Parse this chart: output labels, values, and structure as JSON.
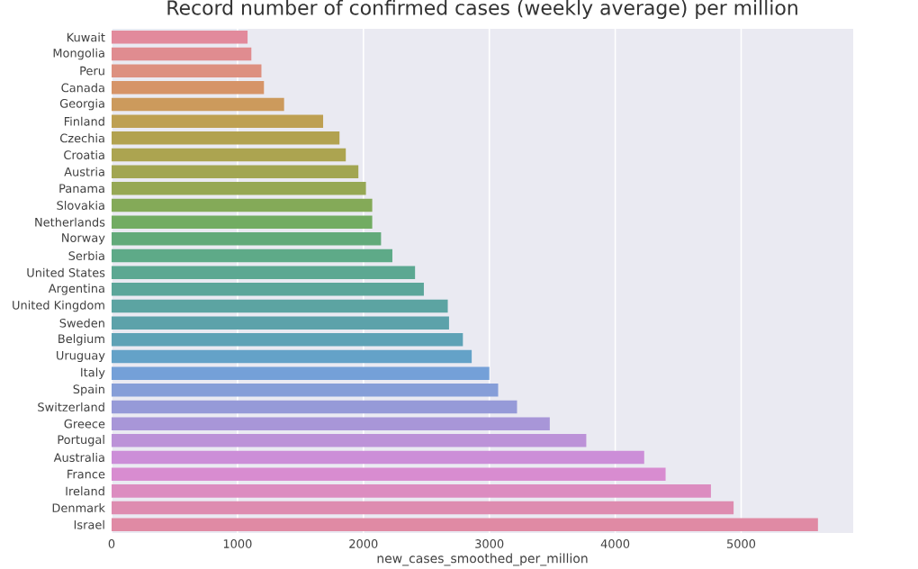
{
  "chart_data": {
    "type": "bar",
    "orientation": "horizontal",
    "title": "Record number of confirmed cases (weekly average) per million",
    "xlabel": "new_cases_smoothed_per_million",
    "categories": [
      "Kuwait",
      "Mongolia",
      "Peru",
      "Canada",
      "Georgia",
      "Finland",
      "Czechia",
      "Croatia",
      "Austria",
      "Panama",
      "Slovakia",
      "Netherlands",
      "Norway",
      "Serbia",
      "United States",
      "Argentina",
      "United Kingdom",
      "Sweden",
      "Belgium",
      "Uruguay",
      "Italy",
      "Spain",
      "Switzerland",
      "Greece",
      "Portugal",
      "Australia",
      "France",
      "Ireland",
      "Denmark",
      "Israel"
    ],
    "values": [
      1080,
      1110,
      1190,
      1210,
      1370,
      1680,
      1810,
      1860,
      1960,
      2020,
      2070,
      2070,
      2140,
      2230,
      2410,
      2480,
      2670,
      2680,
      2790,
      2860,
      3000,
      3070,
      3220,
      3480,
      3770,
      4230,
      4400,
      4760,
      4940,
      5610
    ],
    "colors": [
      "#e28a9c",
      "#e08c90",
      "#dd9080",
      "#d69468",
      "#cc9a5c",
      "#bea052",
      "#b2a250",
      "#aca450",
      "#a2a652",
      "#96a854",
      "#84aa58",
      "#72ac62",
      "#62aa7a",
      "#5eaa88",
      "#5ca892",
      "#5ca69a",
      "#5ca4a2",
      "#5ca2aa",
      "#5ea2b6",
      "#64a2c8",
      "#74a0d8",
      "#869ed8",
      "#969ad8",
      "#a896d8",
      "#bc92d8",
      "#cc8ed8",
      "#d88cd0",
      "#dc8cc0",
      "#de8cb0",
      "#e08aa4"
    ],
    "xlim": [
      0,
      5890
    ],
    "xticks": [
      0,
      1000,
      2000,
      3000,
      4000,
      5000
    ],
    "grid": "x"
  }
}
